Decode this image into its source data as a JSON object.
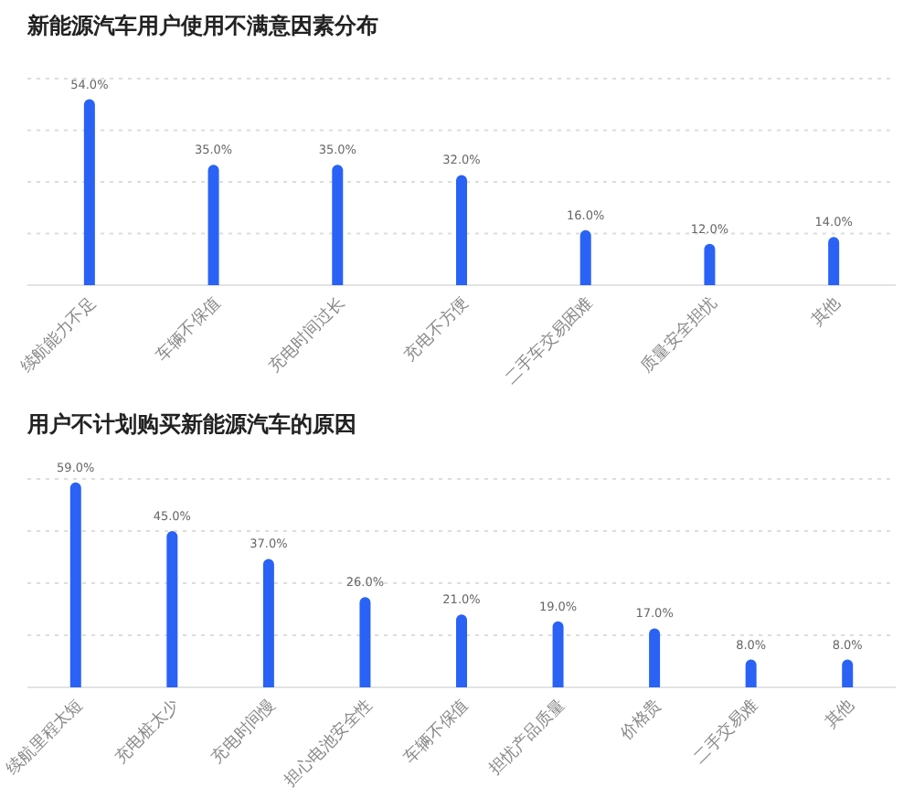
{
  "chart_data": [
    {
      "type": "bar",
      "title": "新能源汽车用户使用不满意因素分布",
      "categories": [
        "续航能力不足",
        "车辆不保值",
        "充电时间过长",
        "充电不方便",
        "二手车交易困难",
        "质量安全担忧",
        "其他"
      ],
      "series": [
        {
          "color": "#2962f5",
          "values": [
            54,
            35,
            35,
            32,
            16,
            12,
            14
          ],
          "value_labels": [
            "54.0%",
            "35.0%",
            "35.0%",
            "32.0%",
            "16.0%",
            "12.0%",
            "14.0%"
          ]
        }
      ],
      "ylim": [
        0,
        60
      ],
      "yticks": [
        {
          "value": 0,
          "label": null
        },
        {
          "value": 15,
          "label": null
        },
        {
          "value": 30,
          "label": null
        },
        {
          "value": 45,
          "label": null
        },
        {
          "value": 60,
          "label": null
        }
      ],
      "grid": "y",
      "tick_labels": "x"
    },
    {
      "type": "bar",
      "title": "用户不计划购买新能源汽车的原因",
      "categories": [
        "续航里程太短",
        "充电桩太少",
        "充电时间慢",
        "担心电池安全性",
        "车辆不保值",
        "担忧产品质量",
        "价格贵",
        "二手交易难",
        "其他"
      ],
      "series": [
        {
          "color": "#2962f5",
          "values": [
            59,
            45,
            37,
            26,
            21,
            19,
            17,
            8,
            8
          ],
          "value_labels": [
            "59.0%",
            "45.0%",
            "37.0%",
            "26.0%",
            "21.0%",
            "19.0%",
            "17.0%",
            "8.0%",
            "8.0%"
          ]
        }
      ],
      "ylim": [
        0,
        60
      ],
      "yticks": [
        {
          "value": 0,
          "label": null
        },
        {
          "value": 15,
          "label": null
        },
        {
          "value": 30,
          "label": null
        },
        {
          "value": 45,
          "label": null
        },
        {
          "value": 60,
          "label": null
        }
      ],
      "grid": "y",
      "tick_labels": "x"
    }
  ]
}
